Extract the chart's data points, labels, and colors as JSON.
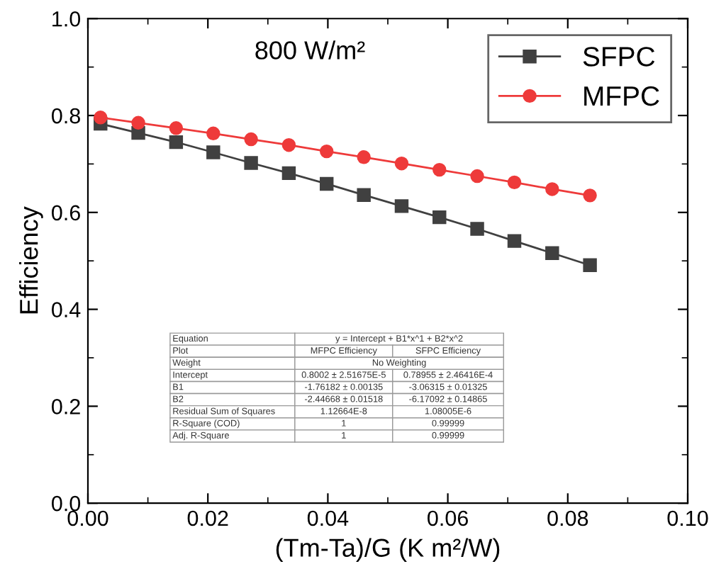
{
  "chart_data": {
    "type": "line",
    "xlabel": "(Tm-Ta)/G (K m²/W)",
    "ylabel": "Efficiency",
    "x": [
      0.0021,
      0.0084,
      0.0147,
      0.0209,
      0.0272,
      0.0335,
      0.0398,
      0.046,
      0.0523,
      0.0586,
      0.0649,
      0.0711,
      0.0774,
      0.0837
    ],
    "series": [
      {
        "name": "SFPC",
        "color": "#404040",
        "marker": "square",
        "values": [
          0.783,
          0.764,
          0.745,
          0.724,
          0.702,
          0.681,
          0.659,
          0.636,
          0.613,
          0.59,
          0.566,
          0.541,
          0.516,
          0.491
        ]
      },
      {
        "name": "MFPC",
        "color": "#ee3a3a",
        "marker": "circle",
        "values": [
          0.796,
          0.785,
          0.774,
          0.763,
          0.751,
          0.739,
          0.726,
          0.714,
          0.701,
          0.688,
          0.675,
          0.662,
          0.648,
          0.635
        ]
      }
    ],
    "xlim": [
      0,
      0.1
    ],
    "xticks": [
      {
        "value": 0,
        "label": "0.00"
      },
      0.02,
      0.04,
      0.06,
      0.08,
      {
        "value": 0.1,
        "label": "0.10"
      }
    ],
    "ylim": [
      0,
      1
    ],
    "yticks": [
      {
        "value": 0,
        "label": "0.0"
      },
      0.2,
      0.4,
      0.6,
      0.8,
      {
        "value": 1,
        "label": "1.0"
      }
    ],
    "grid": false,
    "legend": "top right",
    "line_style": "solid",
    "annotations": [
      "800 W/m²",
      "Equation",
      "y = Intercept + B1*x^1 + B2*x^2",
      "Plot",
      "MFPC Efficiency",
      "SFPC Efficiency",
      "Weight",
      "No Weighting",
      "Intercept",
      "0.8002 ± 2.51675E-5",
      "0.78955 ± 2.46416E-4",
      "B1",
      "-1.76182 ± 0.00135",
      "-3.06315 ± 0.01325",
      "B2",
      "-2.44668 ± 0.01518",
      "-6.17092 ± 0.14865",
      "Residual Sum of Squares",
      "1.12664E-8",
      "1.08005E-6",
      "R-Square (COD)",
      "1",
      "0.99999",
      "Adj. R-Square",
      "1",
      "0.99999"
    ]
  }
}
